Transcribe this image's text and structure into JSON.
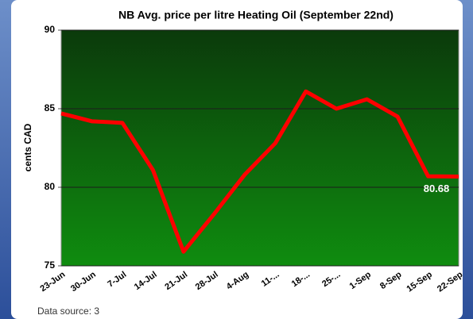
{
  "chart_data": {
    "type": "line",
    "title": "NB Avg. price per litre Heating Oil (September 22nd)",
    "y_label": "cents CAD",
    "footer": "Data source: 3",
    "categories": [
      "23-Jun",
      "30-Jun",
      "7-Jul",
      "14-Jul",
      "21-Jul",
      "28-Jul",
      "4-Aug",
      "11-...",
      "18-...",
      "25-...",
      "1-Sep",
      "8-Sep",
      "15-Sep",
      "22-Sep"
    ],
    "series": [
      {
        "name": "NB Avg. price",
        "color": "#ff0000",
        "values": [
          84.7,
          84.2,
          84.1,
          81.1,
          75.9,
          78.3,
          80.8,
          82.8,
          86.1,
          85.0,
          85.6,
          84.5,
          80.7,
          80.68
        ],
        "value_labels": [
          null,
          null,
          null,
          null,
          null,
          null,
          null,
          null,
          null,
          null,
          null,
          null,
          null,
          "80.68"
        ]
      }
    ],
    "ylim": [
      75,
      90
    ],
    "yticks": [
      75,
      80,
      85,
      90
    ],
    "grid": true
  }
}
